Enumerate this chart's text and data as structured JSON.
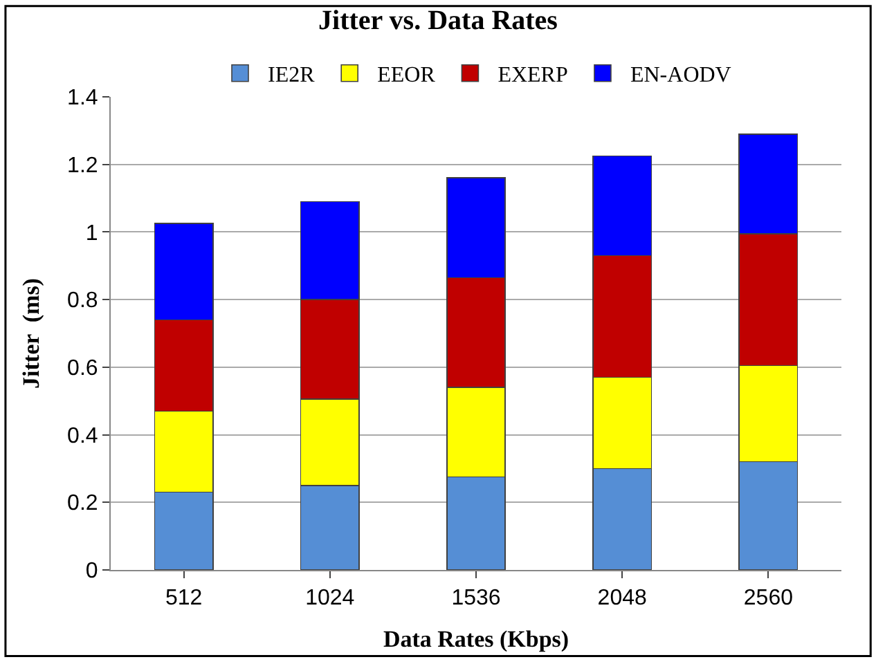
{
  "chart_data": {
    "type": "bar",
    "title": "Jitter vs. Data Rates",
    "xlabel": "Data Rates (Kbps)",
    "ylabel": "Jitter  (ms)",
    "categories": [
      "512",
      "1024",
      "1536",
      "2048",
      "2560"
    ],
    "stacked": true,
    "series": [
      {
        "name": "IE2R",
        "color": "#558ed5",
        "values": [
          0.23,
          0.25,
          0.275,
          0.3,
          0.32
        ]
      },
      {
        "name": "EEOR",
        "color": "#ffff00",
        "values": [
          0.24,
          0.255,
          0.265,
          0.27,
          0.285
        ]
      },
      {
        "name": "EXERP",
        "color": "#c00000",
        "values": [
          0.27,
          0.295,
          0.325,
          0.36,
          0.39
        ]
      },
      {
        "name": "EN-AODV",
        "color": "#0000ff",
        "values": [
          0.285,
          0.29,
          0.295,
          0.295,
          0.295
        ]
      }
    ],
    "ylim": [
      0,
      1.4
    ],
    "yticks": [
      0,
      {
        "value": 0.2,
        "label": "0.2"
      },
      {
        "value": 0.4,
        "label": "0.4"
      },
      {
        "value": 0.6,
        "label": "0.6"
      },
      {
        "value": 0.8,
        "label": "0.8"
      },
      1,
      {
        "value": 1.2,
        "label": "1.2"
      },
      {
        "value": 1.4,
        "label": "1.4"
      }
    ],
    "grid": "y",
    "legend": "top"
  }
}
